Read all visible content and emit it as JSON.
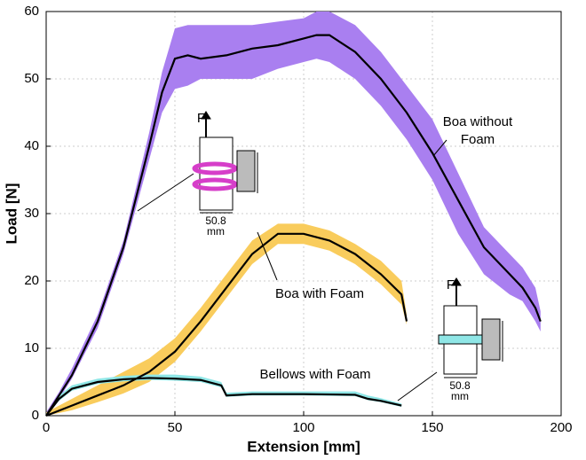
{
  "chart_data": {
    "type": "line",
    "xlabel": "Extension [mm]",
    "ylabel": "Load [N]",
    "xlim": [
      0,
      200
    ],
    "ylim": [
      0,
      60
    ],
    "xticks": [
      0,
      50,
      100,
      150,
      200
    ],
    "yticks": [
      0,
      10,
      20,
      30,
      40,
      50,
      60
    ],
    "grid": true,
    "series": [
      {
        "name": "Boa without Foam",
        "color": "#000000",
        "band_color": "#a97ff0",
        "x": [
          0,
          5,
          10,
          20,
          30,
          40,
          45,
          50,
          55,
          60,
          70,
          80,
          90,
          100,
          105,
          110,
          120,
          130,
          140,
          150,
          160,
          170,
          180,
          185,
          190,
          192
        ],
        "values": [
          0,
          3,
          6,
          14,
          25,
          40,
          48,
          53,
          53.5,
          53,
          53.5,
          54.5,
          55,
          56,
          56.5,
          56.5,
          54,
          50,
          45,
          39,
          32,
          25,
          21,
          19,
          16,
          14
        ],
        "upper": [
          0.5,
          3.5,
          7,
          15,
          26,
          42,
          51,
          57.5,
          58,
          58,
          58,
          58,
          58.5,
          59,
          60,
          60,
          58,
          54,
          49,
          44,
          36,
          28,
          24,
          22,
          19,
          15.5
        ],
        "lower": [
          0,
          2.5,
          5.5,
          13,
          24,
          38,
          45,
          48.5,
          49,
          50,
          50,
          50,
          51.5,
          52.5,
          53,
          52.5,
          50,
          46,
          41,
          35,
          27,
          21,
          18,
          17,
          14,
          12.5
        ]
      },
      {
        "name": "Boa with Foam",
        "color": "#000000",
        "band_color": "#f9cc5c",
        "x": [
          0,
          10,
          20,
          30,
          40,
          50,
          60,
          70,
          80,
          90,
          100,
          110,
          120,
          130,
          138,
          140
        ],
        "values": [
          0,
          1.5,
          3,
          4.5,
          6.5,
          9.5,
          14,
          19,
          24,
          27,
          27,
          26,
          24,
          21,
          18,
          14
        ],
        "upper": [
          0.5,
          2.5,
          4.5,
          6.5,
          8.5,
          11.5,
          16,
          21,
          26,
          28.5,
          28.5,
          27.5,
          25.5,
          23,
          20,
          15
        ],
        "lower": [
          0,
          0.8,
          2,
          3.3,
          5,
          8,
          12.5,
          17.5,
          22.5,
          25.5,
          25.5,
          24.5,
          22.5,
          19.5,
          16.5,
          13.5
        ]
      },
      {
        "name": "Bellows with Foam",
        "color": "#000000",
        "band_color": "#8fe6e6",
        "x": [
          0,
          5,
          10,
          20,
          30,
          40,
          50,
          60,
          68,
          70,
          80,
          100,
          120,
          125,
          130,
          138
        ],
        "values": [
          0,
          2.5,
          4,
          5,
          5.4,
          5.6,
          5.5,
          5.3,
          4.5,
          3,
          3.2,
          3.2,
          3.1,
          2.5,
          2.2,
          1.5
        ],
        "upper": [
          0.3,
          3,
          4.5,
          5.5,
          5.9,
          6.1,
          6.1,
          5.8,
          5,
          3.4,
          3.6,
          3.6,
          3.6,
          3,
          2.6,
          1.8
        ],
        "lower": [
          0,
          2.2,
          3.7,
          4.7,
          5.1,
          5.3,
          5.2,
          5,
          4.2,
          2.8,
          3,
          3,
          2.9,
          2.3,
          2,
          1.3
        ]
      }
    ],
    "diagram_labels": {
      "force": "F",
      "dimension": "50.8",
      "unit": "mm"
    }
  }
}
